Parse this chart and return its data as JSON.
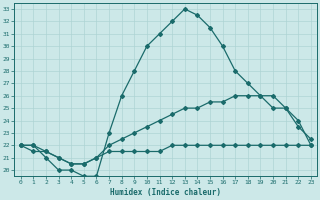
{
  "xlabel": "Humidex (Indice chaleur)",
  "bg_color": "#cce8e8",
  "line_color": "#1a6b6b",
  "grid_color": "#aed4d4",
  "xlim": [
    -0.5,
    23.5
  ],
  "ylim": [
    19.5,
    33.5
  ],
  "xticks": [
    0,
    1,
    2,
    3,
    4,
    5,
    6,
    7,
    8,
    9,
    10,
    11,
    12,
    13,
    14,
    15,
    16,
    17,
    18,
    19,
    20,
    21,
    22,
    23
  ],
  "yticks": [
    20,
    21,
    22,
    23,
    24,
    25,
    26,
    27,
    28,
    29,
    30,
    31,
    32,
    33
  ],
  "line1_x": [
    0,
    1,
    2,
    3,
    4,
    5,
    6,
    7,
    8,
    9,
    10,
    11,
    12,
    13,
    14,
    15,
    16,
    17,
    18,
    19,
    20,
    21,
    22,
    23
  ],
  "line1_y": [
    22,
    22,
    21,
    20,
    20,
    19.5,
    19.5,
    23,
    26,
    28,
    30,
    31,
    32,
    33,
    32.5,
    31.5,
    30,
    28,
    27,
    26,
    25,
    25,
    24,
    22
  ],
  "line2_x": [
    0,
    1,
    2,
    3,
    4,
    5,
    6,
    7,
    8,
    9,
    10,
    11,
    12,
    13,
    14,
    15,
    16,
    17,
    18,
    19,
    20,
    21,
    22,
    23
  ],
  "line2_y": [
    22,
    22,
    21.5,
    21,
    20.5,
    20.5,
    21,
    22,
    22.5,
    23,
    23.5,
    24,
    24.5,
    25,
    25,
    25.5,
    25.5,
    26,
    26,
    26,
    26,
    25,
    23.5,
    22.5
  ],
  "line3_x": [
    0,
    1,
    2,
    3,
    4,
    5,
    6,
    7,
    8,
    9,
    10,
    11,
    12,
    13,
    14,
    15,
    16,
    17,
    18,
    19,
    20,
    21,
    22,
    23
  ],
  "line3_y": [
    22,
    21.5,
    21.5,
    21,
    20.5,
    20.5,
    21,
    21.5,
    21.5,
    21.5,
    21.5,
    21.5,
    22,
    22,
    22,
    22,
    22,
    22,
    22,
    22,
    22,
    22,
    22,
    22
  ]
}
